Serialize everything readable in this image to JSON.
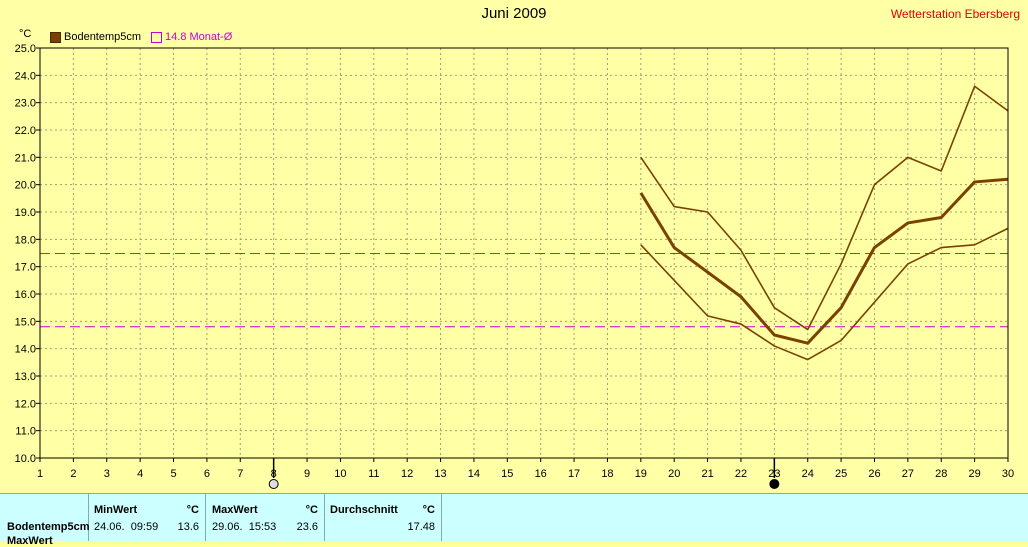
{
  "header": {
    "title": "Juni 2009",
    "station": "Wetterstation Ebersberg",
    "unit": "°C"
  },
  "legend": {
    "main_label": "Bodentemp5cm",
    "avg_label": "14.8 Monat-Ø"
  },
  "colors": {
    "background": "#ffffa6",
    "series": "#7a4200",
    "month_avg_line": "#cc00cc",
    "period_avg_line": "#8b5a00",
    "grid": "#a0a070",
    "table_bg": "#ccffff"
  },
  "markers": {
    "full_moon_day": 8,
    "new_moon_day": 23
  },
  "chart_data": {
    "type": "line",
    "x": [
      19,
      20,
      21,
      22,
      23,
      24,
      25,
      26,
      27,
      28,
      29,
      30
    ],
    "xticks": [
      "1",
      "2",
      "3",
      "4",
      "5",
      "6",
      "7",
      "8",
      "9",
      "10",
      "11",
      "12",
      "13",
      "14",
      "15",
      "16",
      "17",
      "18",
      "19",
      "20",
      "21",
      "22",
      "23",
      "24",
      "25",
      "26",
      "27",
      "28",
      "29",
      "30"
    ],
    "yticks": [
      "10.0",
      "11.0",
      "12.0",
      "13.0",
      "14.0",
      "15.0",
      "16.0",
      "17.0",
      "18.0",
      "19.0",
      "20.0",
      "21.0",
      "22.0",
      "23.0",
      "24.0",
      "25.0"
    ],
    "ylim": [
      10,
      25
    ],
    "xlim": [
      1,
      30
    ],
    "grid": true,
    "legend_position": "top-left",
    "series": [
      {
        "name": "Bodentemp5cm",
        "role": "mean",
        "values": [
          19.7,
          17.7,
          16.8,
          15.9,
          14.5,
          14.2,
          15.5,
          17.7,
          18.6,
          18.8,
          20.1,
          20.2
        ]
      },
      {
        "role": "max",
        "values": [
          21.0,
          19.2,
          19.0,
          17.6,
          15.5,
          14.7,
          17.1,
          20.0,
          21.0,
          20.5,
          23.6,
          22.7
        ]
      },
      {
        "role": "min",
        "values": [
          17.8,
          16.5,
          15.2,
          14.9,
          14.1,
          13.6,
          14.3,
          15.7,
          17.1,
          17.7,
          17.8,
          18.4
        ]
      }
    ],
    "hlines": [
      {
        "name": "14.8 Monat-Ø",
        "value": 14.8
      },
      {
        "value": 17.48
      }
    ]
  },
  "table": {
    "row_label": "Bodentemp5cm",
    "row2_label": "MaxWert",
    "headers": {
      "min": "MinWert",
      "max": "MaxWert",
      "avg": "Durchschnitt",
      "unit": "°C"
    },
    "min_datetime": "24.06.  09:59",
    "min_value": "13.6",
    "max_datetime": "29.06.  15:53",
    "max_value": "23.6",
    "avg_value": "17.48"
  }
}
